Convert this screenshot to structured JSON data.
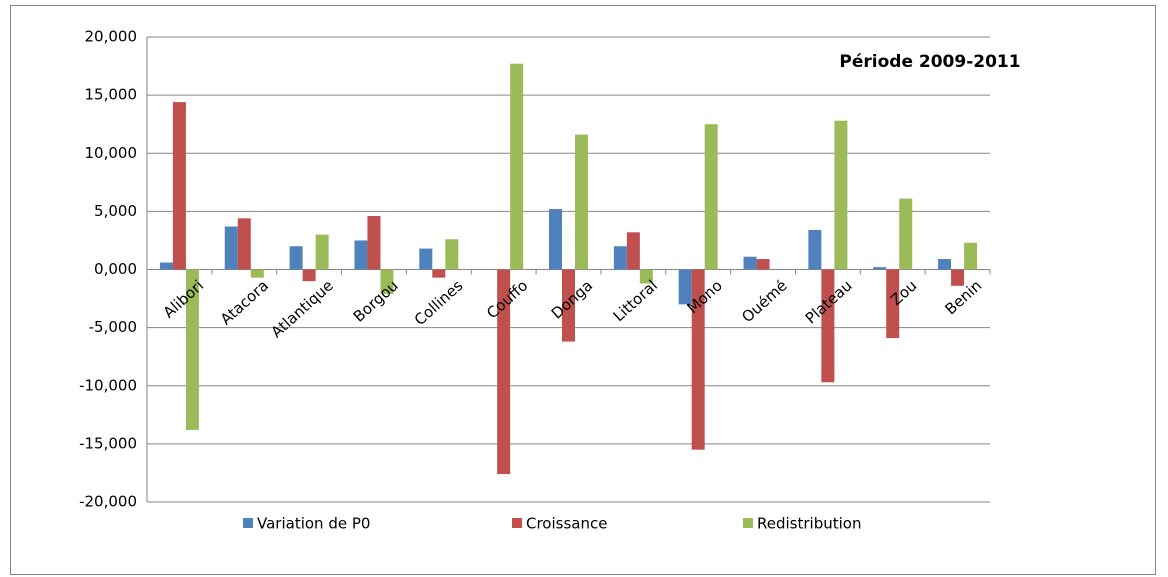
{
  "chart_data": {
    "type": "bar",
    "annotation": "Période 2009-2011",
    "categories": [
      "Alibori",
      "Atacora",
      "Atlantique",
      "Borgou",
      "Collines",
      "Couffo",
      "Donga",
      "Littoral",
      "Mono",
      "Ouémé",
      "Plateau",
      "Zou",
      "Benin"
    ],
    "series": [
      {
        "name": "Variation de P0",
        "color": "#4f81bd",
        "values": [
          0.6,
          3.7,
          2.0,
          2.5,
          1.8,
          0.0,
          5.2,
          2.0,
          -3.0,
          1.1,
          3.4,
          0.2,
          0.9
        ]
      },
      {
        "name": "Croissance",
        "color": "#c0504d",
        "values": [
          14.4,
          4.4,
          -1.0,
          4.6,
          -0.7,
          -17.6,
          -6.2,
          3.2,
          -15.5,
          0.9,
          -9.7,
          -5.9,
          -1.4
        ]
      },
      {
        "name": "Redistribution",
        "color": "#9bbb59",
        "values": [
          -13.8,
          -0.7,
          3.0,
          -2.1,
          2.6,
          17.7,
          11.6,
          -1.2,
          12.5,
          0.0,
          12.8,
          6.1,
          2.3
        ]
      }
    ],
    "ylim": [
      -20,
      20
    ],
    "yticks": [
      {
        "value": -20,
        "label": "-20,000"
      },
      {
        "value": -15,
        "label": "-15,000"
      },
      {
        "value": -10,
        "label": "-10,000"
      },
      {
        "value": -5,
        "label": "-5,000"
      },
      {
        "value": 0,
        "label": "0,000"
      },
      {
        "value": 5,
        "label": "5,000"
      },
      {
        "value": 10,
        "label": "10,000"
      },
      {
        "value": 15,
        "label": "15,000"
      },
      {
        "value": 20,
        "label": "20,000"
      }
    ],
    "grid": true,
    "legend": "bottom"
  }
}
